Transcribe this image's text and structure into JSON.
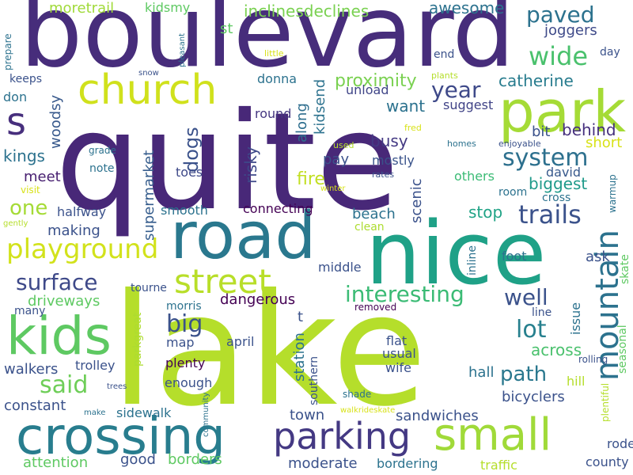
{
  "words": [
    {
      "text": "lake",
      "color": "#b5de2b"
    },
    {
      "text": "quite",
      "color": "#482878"
    },
    {
      "text": "boulevard",
      "color": "#472d7b"
    },
    {
      "text": "nice",
      "color": "#1fa187"
    },
    {
      "text": "road",
      "color": "#2a788e"
    },
    {
      "text": "crossing",
      "color": "#287d8e"
    },
    {
      "text": "park",
      "color": "#a5db36"
    },
    {
      "text": "kids",
      "color": "#5ec962"
    },
    {
      "text": "small",
      "color": "#a0da39"
    },
    {
      "text": "church",
      "color": "#d0e11c"
    },
    {
      "text": "parking",
      "color": "#443983"
    },
    {
      "text": "mountain",
      "color": "#2c728e"
    },
    {
      "text": "street",
      "color": "#b8de29"
    },
    {
      "text": "playground",
      "color": "#d2e21b"
    },
    {
      "text": "s",
      "color": "#472f7d"
    },
    {
      "text": "trails",
      "color": "#3b528b"
    },
    {
      "text": "wide",
      "color": "#4ac16d"
    },
    {
      "text": "system",
      "color": "#2d708e"
    },
    {
      "text": "said",
      "color": "#6ece58"
    },
    {
      "text": "paved",
      "color": "#2c728e"
    },
    {
      "text": "big",
      "color": "#3b528b"
    },
    {
      "text": "lot",
      "color": "#27808e"
    },
    {
      "text": "year",
      "color": "#3e4989"
    },
    {
      "text": "interesting",
      "color": "#3bbb75"
    },
    {
      "text": "surface",
      "color": "#3e4989"
    },
    {
      "text": "well",
      "color": "#3b528b"
    },
    {
      "text": "path",
      "color": "#2a788e"
    },
    {
      "text": "one",
      "color": "#a5db36"
    },
    {
      "text": "dogs",
      "color": "#3b528b"
    },
    {
      "text": "proximity",
      "color": "#7ad151"
    },
    {
      "text": "catherine",
      "color": "#287c8e"
    },
    {
      "text": "biggest",
      "color": "#1f9a8a"
    },
    {
      "text": "busy",
      "color": "#443983"
    },
    {
      "text": "awesome",
      "color": "#2c728e"
    },
    {
      "text": "inclinesdeclines",
      "color": "#7ad151"
    },
    {
      "text": "joggers",
      "color": "#3e4a89"
    },
    {
      "text": "moretrail",
      "color": "#a0da39"
    },
    {
      "text": "kidsmy",
      "color": "#5ec962"
    },
    {
      "text": "st",
      "color": "#5ec962"
    },
    {
      "text": "kidsend",
      "color": "#2c728e"
    },
    {
      "text": "along",
      "color": "#2e6e8e"
    },
    {
      "text": "scenic",
      "color": "#3b528b"
    },
    {
      "text": "risky",
      "color": "#3e4989"
    },
    {
      "text": "fire",
      "color": "#c2df23"
    },
    {
      "text": "pay",
      "color": "#3b528b"
    },
    {
      "text": "mostly",
      "color": "#3a538b"
    },
    {
      "text": "want",
      "color": "#2c728e"
    },
    {
      "text": "bit",
      "color": "#3b528b"
    },
    {
      "text": "behind",
      "color": "#46307e"
    },
    {
      "text": "short",
      "color": "#d8e219"
    },
    {
      "text": "david",
      "color": "#38598c"
    },
    {
      "text": "unload",
      "color": "#404688"
    },
    {
      "text": "suggest",
      "color": "#404387"
    },
    {
      "text": "round",
      "color": "#453781"
    },
    {
      "text": "donna",
      "color": "#2c728e"
    },
    {
      "text": "woodsy",
      "color": "#38598c"
    },
    {
      "text": "kings",
      "color": "#2c728e"
    },
    {
      "text": "meet",
      "color": "#482071"
    },
    {
      "text": "supermarket",
      "color": "#365d8d"
    },
    {
      "text": "beach",
      "color": "#2c728e"
    },
    {
      "text": "stop",
      "color": "#20a386"
    },
    {
      "text": "ask",
      "color": "#3b528b"
    },
    {
      "text": "making",
      "color": "#3b528b"
    },
    {
      "text": "halfway",
      "color": "#3b528b"
    },
    {
      "text": "smooth",
      "color": "#2c728e"
    },
    {
      "text": "connecting",
      "color": "#440154"
    },
    {
      "text": "clean",
      "color": "#addc30"
    },
    {
      "text": "toes",
      "color": "#3e4989"
    },
    {
      "text": "note",
      "color": "#2c728e"
    },
    {
      "text": "grade",
      "color": "#2c728e"
    },
    {
      "text": "others",
      "color": "#3bbb75"
    },
    {
      "text": "room",
      "color": "#2c728e"
    },
    {
      "text": "cross",
      "color": "#2c728e"
    },
    {
      "text": "foot",
      "color": "#2c728e"
    },
    {
      "text": "inline",
      "color": "#2c728e"
    },
    {
      "text": "issue",
      "color": "#2c728e"
    },
    {
      "text": "line",
      "color": "#3b528b"
    },
    {
      "text": "across",
      "color": "#4ac16d"
    },
    {
      "text": "hall",
      "color": "#2c728e"
    },
    {
      "text": "bicyclers",
      "color": "#3b528b"
    },
    {
      "text": "driveways",
      "color": "#5ec962"
    },
    {
      "text": "dangerous",
      "color": "#440154"
    },
    {
      "text": "middle",
      "color": "#3b528b"
    },
    {
      "text": "t",
      "color": "#3b528b"
    },
    {
      "text": "station",
      "color": "#2c728e"
    },
    {
      "text": "southern",
      "color": "#3b528b"
    },
    {
      "text": "flat",
      "color": "#3b528b"
    },
    {
      "text": "usual",
      "color": "#3b528b"
    },
    {
      "text": "wife",
      "color": "#3b528b"
    },
    {
      "text": "april",
      "color": "#3b528b"
    },
    {
      "text": "map",
      "color": "#3b528b"
    },
    {
      "text": "plenty",
      "color": "#440154"
    },
    {
      "text": "enough",
      "color": "#3b528b"
    },
    {
      "text": "walkers",
      "color": "#3b528b"
    },
    {
      "text": "trolley",
      "color": "#3b528b"
    },
    {
      "text": "parkgreat",
      "color": "#addc30"
    },
    {
      "text": "constant",
      "color": "#3b528b"
    },
    {
      "text": "sidewalk",
      "color": "#2c728e"
    },
    {
      "text": "town",
      "color": "#3b528b"
    },
    {
      "text": "sandwiches",
      "color": "#3b528b"
    },
    {
      "text": "attention",
      "color": "#5ec962"
    },
    {
      "text": "good",
      "color": "#3b528b"
    },
    {
      "text": "borders",
      "color": "#5ec962"
    },
    {
      "text": "moderate",
      "color": "#3b528b"
    },
    {
      "text": "bordering",
      "color": "#2c728e"
    },
    {
      "text": "traffic",
      "color": "#b5de2b"
    },
    {
      "text": "county",
      "color": "#3b528b"
    },
    {
      "text": "rode",
      "color": "#3b528b"
    },
    {
      "text": "hill",
      "color": "#b5de2b"
    },
    {
      "text": "many",
      "color": "#3b528b"
    },
    {
      "text": "morris",
      "color": "#2c728e"
    },
    {
      "text": "tourne",
      "color": "#3b528b"
    },
    {
      "text": "removed",
      "color": "#440154"
    },
    {
      "text": "make",
      "color": "#2c728e"
    },
    {
      "text": "trees",
      "color": "#3b528b"
    },
    {
      "text": "community",
      "color": "#2c728e"
    },
    {
      "text": "walkrideskate",
      "color": "#d8e219"
    },
    {
      "text": "shade",
      "color": "#2c728e"
    },
    {
      "text": "plentiful",
      "color": "#b5de2b"
    },
    {
      "text": "rolling",
      "color": "#3b528b"
    },
    {
      "text": "seasonal",
      "color": "#5ec962"
    },
    {
      "text": "skate",
      "color": "#5ec962"
    },
    {
      "text": "warmup",
      "color": "#2c728e"
    },
    {
      "text": "winter",
      "color": "#d8e219"
    },
    {
      "text": "rates",
      "color": "#3b528b"
    },
    {
      "text": "fred",
      "color": "#d8e219"
    },
    {
      "text": "used",
      "color": "#b5de2b"
    },
    {
      "text": "homes",
      "color": "#2c728e"
    },
    {
      "text": "enjoyable",
      "color": "#3b528b"
    },
    {
      "text": "plants",
      "color": "#b5de2b"
    },
    {
      "text": "end",
      "color": "#3b528b"
    },
    {
      "text": "day",
      "color": "#3b528b"
    },
    {
      "text": "little",
      "color": "#d8e219"
    },
    {
      "text": "pleasant",
      "color": "#2c728e"
    },
    {
      "text": "snow",
      "color": "#3b528b"
    },
    {
      "text": "prepare",
      "color": "#2c728e"
    },
    {
      "text": "keeps",
      "color": "#3b528b"
    },
    {
      "text": "don",
      "color": "#2c728e"
    },
    {
      "text": "visit",
      "color": "#d8e219"
    },
    {
      "text": "gently",
      "color": "#b5de2b"
    }
  ]
}
